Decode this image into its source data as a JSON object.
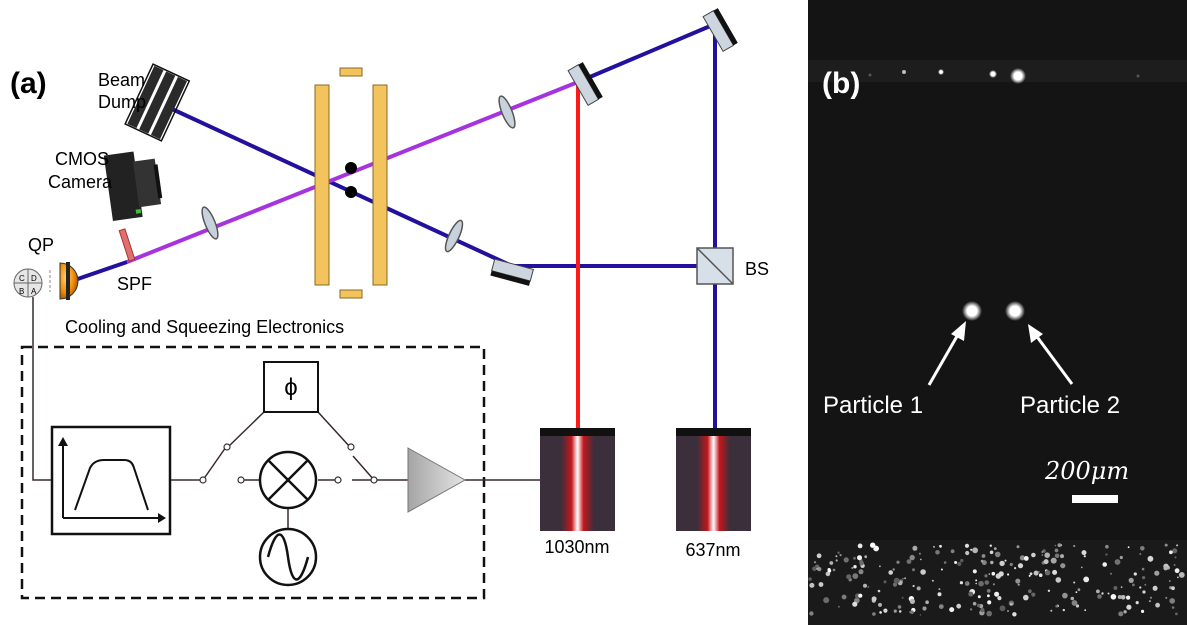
{
  "panel_a": {
    "label": "(a)",
    "beam_dump": [
      "Beam",
      "Dump"
    ],
    "cmos_camera": [
      "CMOS",
      "Camera"
    ],
    "qp": "QP",
    "qp_quadrants": [
      "A",
      "B",
      "C",
      "D"
    ],
    "spf": "SPF",
    "bs": "BS",
    "electronics_title": "Cooling and Squeezing Electronics",
    "phase_symbol": "ϕ",
    "laser_1030": "1030nm",
    "laser_637": "637nm"
  },
  "panel_b": {
    "label": "(b)",
    "particle_1": "Particle 1",
    "particle_2": "Particle 2",
    "scale_bar": "200μm"
  },
  "colors": {
    "laser_637_beam": "#23119e",
    "laser_1030_beam": "#ff1a1a",
    "combined_beam": "#a633e0",
    "electrode": "#f3c35e",
    "camera_background": "#141414"
  }
}
